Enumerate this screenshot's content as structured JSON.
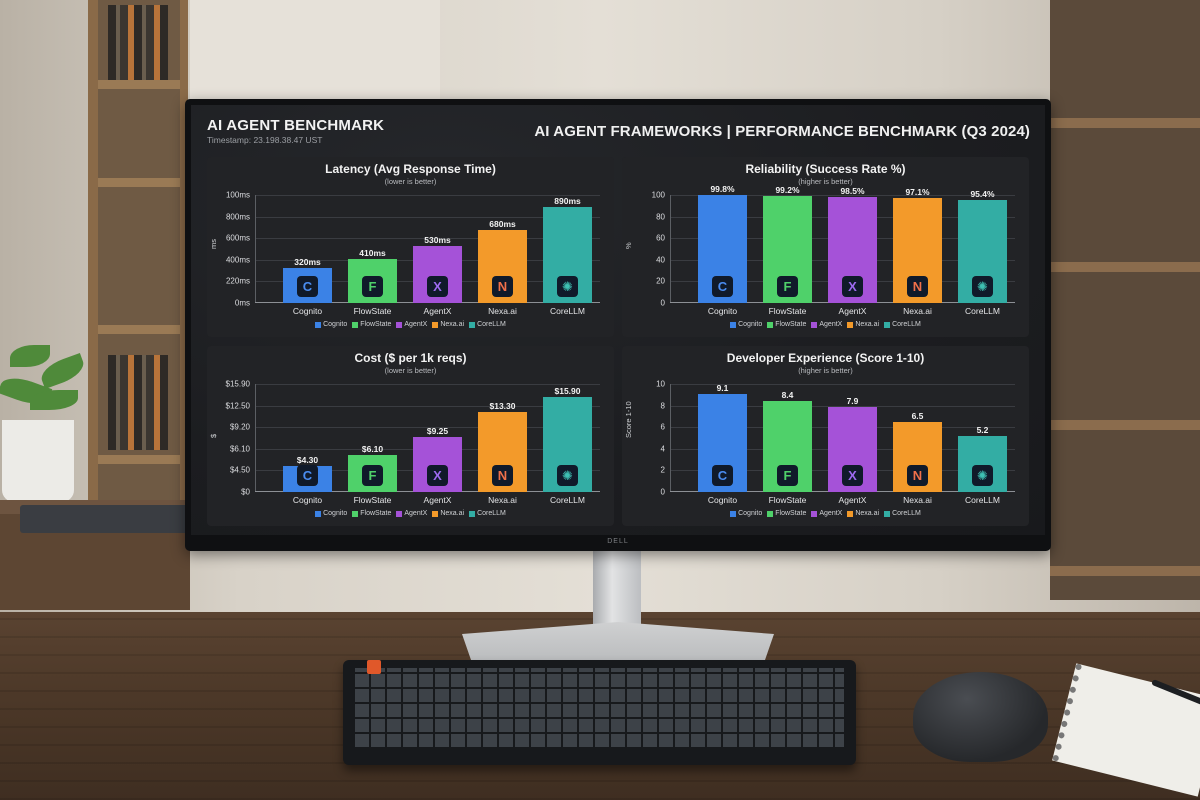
{
  "header": {
    "app_title": "AI AGENT BENCHMARK",
    "timestamp": "Timestamp: 23.198.38.47 UST",
    "main_title": "AI AGENT FRAMEWORKS | PERFORMANCE BENCHMARK (Q3 2024)"
  },
  "monitor_brand": "DELL",
  "frameworks": [
    {
      "name": "Cognito",
      "color": "#3b82e6",
      "icon": "c-logo-icon",
      "glyph": "C",
      "glyph_color": "#4a8cf0"
    },
    {
      "name": "FlowState",
      "color": "#4fd16a",
      "icon": "f-logo-icon",
      "glyph": "F",
      "glyph_color": "#4fd16a"
    },
    {
      "name": "AgentX",
      "color": "#a552d8",
      "icon": "x-logo-icon",
      "glyph": "X",
      "glyph_color": "#9c6af0"
    },
    {
      "name": "Nexa.ai",
      "color": "#f39a2a",
      "icon": "n-logo-icon",
      "glyph": "N",
      "glyph_color": "#f0704a"
    },
    {
      "name": "CoreLLM",
      "color": "#33ada4",
      "icon": "globe-logo-icon",
      "glyph": "✺",
      "glyph_color": "#3ec0b3"
    }
  ],
  "chart_data": [
    {
      "type": "bar",
      "title": "Latency (Avg Response Time)",
      "subtitle": "(lower is better)",
      "xlabel": "",
      "ylabel": "ms",
      "categories": [
        "Cognito",
        "FlowState",
        "AgentX",
        "Nexa.ai",
        "CoreLLM"
      ],
      "values": [
        320,
        410,
        530,
        680,
        890
      ],
      "value_labels": [
        "320ms",
        "410ms",
        "530ms",
        "680ms",
        "890ms"
      ],
      "y_ticks": [
        "0ms",
        "220ms",
        "400ms",
        "600ms",
        "800ms",
        "100ms"
      ],
      "ylim": [
        0,
        1000
      ],
      "legend": [
        "Cognito",
        "FlowState",
        "AgentX",
        "Nexa.ai",
        "CoreLLM"
      ],
      "legend_position": "bottom",
      "grid": true
    },
    {
      "type": "bar",
      "title": "Reliability (Success Rate %)",
      "subtitle": "(higher is better)",
      "xlabel": "",
      "ylabel": "%",
      "categories": [
        "Cognito",
        "FlowState",
        "AgentX",
        "Nexa.ai",
        "CoreLLM"
      ],
      "values": [
        99.8,
        99.2,
        98.5,
        97.1,
        95.4
      ],
      "value_labels": [
        "99.8%",
        "99.2%",
        "98.5%",
        "97.1%",
        "95.4%"
      ],
      "y_ticks": [
        "0",
        "20",
        "40",
        "60",
        "80",
        "100"
      ],
      "ylim": [
        0,
        100
      ],
      "legend": [
        "Cognito",
        "FlowState",
        "AgentX",
        "Nexa.ai",
        "CoreLLM"
      ],
      "legend_position": "bottom",
      "grid": true
    },
    {
      "type": "bar",
      "title": "Cost ($ per 1k reqs)",
      "subtitle": "(lower is better)",
      "xlabel": "",
      "ylabel": "$",
      "categories": [
        "Cognito",
        "FlowState",
        "AgentX",
        "Nexa.ai",
        "CoreLLM"
      ],
      "values": [
        4.3,
        6.1,
        9.25,
        13.3,
        15.9
      ],
      "value_labels": [
        "$4.30",
        "$6.10",
        "$9.25",
        "$13.30",
        "$15.90"
      ],
      "y_ticks": [
        "$0",
        "$4.50",
        "$6.10",
        "$9.20",
        "$12.50",
        "$15.90"
      ],
      "ylim": [
        0,
        18
      ],
      "legend": [
        "Cognito",
        "FlowState",
        "AgentX",
        "Nexa.ai",
        "CoreLLM"
      ],
      "legend_position": "bottom",
      "grid": true
    },
    {
      "type": "bar",
      "title": "Developer Experience (Score 1-10)",
      "subtitle": "(higher is better)",
      "xlabel": "",
      "ylabel": "Score 1-10",
      "categories": [
        "Cognito",
        "FlowState",
        "AgentX",
        "Nexa.ai",
        "CoreLLM"
      ],
      "values": [
        9.1,
        8.4,
        7.9,
        6.5,
        5.2
      ],
      "value_labels": [
        "9.1",
        "8.4",
        "7.9",
        "6.5",
        "5.2"
      ],
      "y_ticks": [
        "0",
        "2",
        "4",
        "6",
        "8",
        "10"
      ],
      "ylim": [
        0,
        10
      ],
      "legend": [
        "Cognito",
        "FlowState",
        "AgentX",
        "Nexa.ai",
        "CoreLLM"
      ],
      "legend_position": "bottom",
      "grid": true
    }
  ]
}
